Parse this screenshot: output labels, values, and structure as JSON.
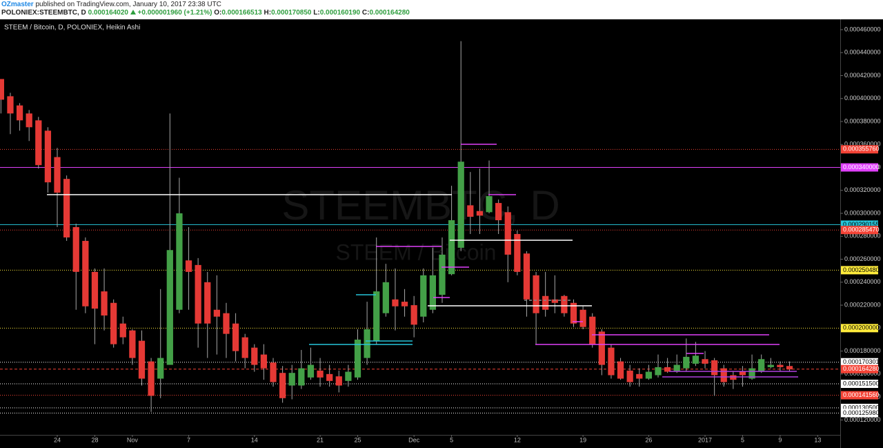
{
  "header": {
    "author": "OZmaster",
    "published": "published on TradingView.com, January 10, 2017 23:38 UTC",
    "symbol": "POLONIEX:STEEMBTC, D",
    "last": "0.000164020",
    "change": "+0.000001960 (+1.21%)",
    "ohlc": [
      {
        "label": "O:",
        "value": "0.000166513"
      },
      {
        "label": "H:",
        "value": "0.000170850"
      },
      {
        "label": "L:",
        "value": "0.000160190"
      },
      {
        "label": "C:",
        "value": "0.000164280"
      }
    ]
  },
  "chart_data": {
    "type": "candlestick",
    "title": "STEEM / Bitcoin, D, POLONIEX, Heikin Ashi",
    "watermark": "STEEMBTC, D",
    "watermark_subtitle": "STEEM / Bitcoin",
    "up_color": "#43a047",
    "down_color": "#e53935",
    "wick_color": "#a8a8a8",
    "open": [
      0.000417,
      0.000402,
      0.000394,
      0.000387,
      0.000381,
      0.000372,
      0.000349,
      0.00033,
      0.000288,
      0.000276,
      0.000249,
      0.000232,
      0.000222,
      0.000204,
      0.000198,
      0.000189,
      0.000171,
      0.000156,
      0.000168,
      0.000216,
      0.000259,
      0.000255,
      0.00024,
      0.000216,
      0.000213,
      0.000204,
      0.000192,
      0.000183,
      0.000177,
      0.00017,
      0.000161,
      0.00015,
      0.00015,
      0.000157,
      0.000163,
      0.00016,
      0.000158,
      0.000154,
      0.000157,
      0.000174,
      0.000189,
      0.000213,
      0.000225,
      0.000223,
      0.00022,
      0.00021,
      0.000216,
      0.000229,
      0.000247,
      0.00027,
      0.000307,
      0.000302,
      0.000301,
      0.000309,
      0.000301,
      0.000282,
      0.000265,
      0.000246,
      0.000228,
      0.000225,
      0.000228,
      0.000222,
      0.000216,
      0.00021,
      0.000197,
      0.000183,
      0.000171,
      0.000163,
      0.00016,
      0.000156,
      0.000159,
      0.000166,
      0.000162,
      0.000165,
      0.000169,
      0.000173,
      0.000172,
      0.000165,
      0.000159,
      0.000162,
      0.000156,
      0.000162,
      0.000166,
      0.000168,
      0.000167
    ],
    "close": [
      0.000399,
      0.000387,
      0.000381,
      0.000375,
      0.000342,
      0.000327,
      0.000318,
      0.000279,
      0.000249,
      0.000219,
      0.000217,
      0.000211,
      0.000186,
      0.000192,
      0.000174,
      0.000156,
      0.000141,
      0.000174,
      0.000268,
      0.0003,
      0.000249,
      0.000204,
      0.000204,
      0.00021,
      0.000195,
      0.00018,
      0.000174,
      0.000168,
      0.000165,
      0.000153,
      0.000139,
      0.000161,
      0.000165,
      0.000168,
      0.000157,
      0.000154,
      0.00015,
      0.000162,
      0.00019,
      0.000199,
      0.000232,
      0.00024,
      0.000219,
      0.000219,
      0.000203,
      0.000246,
      0.000246,
      0.000264,
      0.000294,
      0.000345,
      0.000297,
      0.000298,
      0.000315,
      0.000294,
      0.000264,
      0.000249,
      0.000225,
      0.000213,
      0.000216,
      0.000222,
      0.000213,
      0.000204,
      0.000201,
      0.000186,
      0.000168,
      0.000159,
      0.000156,
      0.000153,
      0.000156,
      0.000162,
      0.000166,
      0.000162,
      0.000168,
      0.000175,
      0.000176,
      0.000169,
      0.000159,
      0.000153,
      0.000155,
      0.000159,
      0.000165,
      0.000173,
      0.000168,
      0.000166,
      0.000164
    ],
    "high": [
      0.000417,
      0.000405,
      0.000396,
      0.00039,
      0.000384,
      0.000375,
      0.000357,
      0.000333,
      0.000291,
      0.000279,
      0.000252,
      0.000252,
      0.000225,
      0.00021,
      0.000199,
      0.000198,
      0.000174,
      0.000234,
      0.000387,
      0.000331,
      0.000288,
      0.000261,
      0.000249,
      0.000246,
      0.000222,
      0.000213,
      0.000195,
      0.000186,
      0.000186,
      0.000174,
      0.000167,
      0.000168,
      0.000181,
      0.000183,
      0.000174,
      0.000168,
      0.000163,
      0.000168,
      0.000199,
      0.000223,
      0.000279,
      0.000256,
      0.000252,
      0.000234,
      0.000228,
      0.000252,
      0.00027,
      0.000279,
      0.000324,
      0.00045,
      0.000336,
      0.000339,
      0.000346,
      0.000312,
      0.000306,
      0.000285,
      0.000267,
      0.000249,
      0.000249,
      0.000246,
      0.000229,
      0.000225,
      0.000219,
      0.000213,
      0.000199,
      0.000186,
      0.000174,
      0.000168,
      0.000165,
      0.000168,
      0.000177,
      0.000174,
      0.000177,
      0.000191,
      0.000188,
      0.00018,
      0.000174,
      0.000168,
      0.000162,
      0.000167,
      0.000177,
      0.000177,
      0.000174,
      0.000171,
      0.000171
    ],
    "low": [
      0.000387,
      0.000369,
      0.000372,
      0.000363,
      0.000339,
      0.000318,
      0.000288,
      0.000276,
      0.000216,
      0.000213,
      0.000186,
      0.000198,
      0.000183,
      0.000186,
      0.000168,
      0.00015,
      0.000127,
      0.000139,
      0.000168,
      0.000213,
      0.000216,
      0.000183,
      0.000174,
      0.000177,
      0.000174,
      0.000171,
      0.000165,
      0.000162,
      0.000155,
      0.000149,
      0.000135,
      0.000138,
      0.000147,
      0.000155,
      0.000149,
      0.000149,
      0.000144,
      0.000149,
      0.000155,
      0.000168,
      0.000186,
      0.00021,
      0.000198,
      0.00021,
      0.000192,
      0.000205,
      0.000213,
      0.000222,
      0.000246,
      0.000267,
      0.000282,
      0.000282,
      0.0003,
      0.000282,
      0.00024,
      0.000246,
      0.00021,
      0.000186,
      0.00021,
      0.000213,
      0.00021,
      0.000201,
      0.000199,
      0.000183,
      0.000159,
      0.000156,
      0.000155,
      0.000149,
      0.000149,
      0.000155,
      0.000157,
      0.000161,
      0.000161,
      0.000162,
      0.000167,
      0.000165,
      0.000141,
      0.000149,
      0.000147,
      0.000149,
      0.000155,
      0.000161,
      0.000165,
      0.000162,
      0.000162
    ],
    "xlim": [
      -0.1,
      89.4
    ],
    "xticks": [
      {
        "value": 6,
        "label": "24"
      },
      {
        "value": 10,
        "label": "28"
      },
      {
        "value": 14,
        "label": "Nov"
      },
      {
        "value": 20,
        "label": "7"
      },
      {
        "value": 27,
        "label": "14"
      },
      {
        "value": 34,
        "label": "21"
      },
      {
        "value": 38,
        "label": "25"
      },
      {
        "value": 44,
        "label": "Dec"
      },
      {
        "value": 48,
        "label": "5"
      },
      {
        "value": 55,
        "label": "12"
      },
      {
        "value": 62,
        "label": "19"
      },
      {
        "value": 69,
        "label": "26"
      },
      {
        "value": 75,
        "label": "2017"
      },
      {
        "value": 79,
        "label": "5"
      },
      {
        "value": 83,
        "label": "9"
      },
      {
        "value": 87,
        "label": "13"
      }
    ],
    "ylim": [
      0.000107,
      0.000469
    ],
    "yticks": [
      {
        "value": 0.00046,
        "label": "0.000460000"
      },
      {
        "value": 0.00044,
        "label": "0.000440000"
      },
      {
        "value": 0.00042,
        "label": "0.000420000"
      },
      {
        "value": 0.0004,
        "label": "0.000400000"
      },
      {
        "value": 0.00038,
        "label": "0.000380000"
      },
      {
        "value": 0.00036,
        "label": "0.000360000"
      },
      {
        "value": 0.00034,
        "label": "0.000340000"
      },
      {
        "value": 0.00032,
        "label": "0.000320000"
      },
      {
        "value": 0.0003,
        "label": "0.000300000"
      },
      {
        "value": 0.00028,
        "label": "0.000280000"
      },
      {
        "value": 0.00026,
        "label": "0.000260000"
      },
      {
        "value": 0.00024,
        "label": "0.000240000"
      },
      {
        "value": 0.00022,
        "label": "0.000220000"
      },
      {
        "value": 0.0002,
        "label": "0.000200000"
      },
      {
        "value": 0.00018,
        "label": "0.000180000"
      },
      {
        "value": 0.00016,
        "label": "0.000160000"
      },
      {
        "value": 0.00014,
        "label": "0.000140000"
      },
      {
        "value": 0.00012,
        "label": "0.000120000"
      }
    ],
    "grid": false,
    "levels": [
      {
        "value": 0.00035576,
        "label": "0.000355760",
        "color": "#f44336",
        "text_color": "#ffffff",
        "style": "dotted"
      },
      {
        "value": 0.00034,
        "label": "0.000340000",
        "color": "#e040fb",
        "text_color": "#ffffff",
        "style": "solid"
      },
      {
        "value": 0.000290155,
        "label": "0.000290155",
        "color": "#26c6da",
        "text_color": "#000000",
        "style": "solid"
      },
      {
        "value": 0.00028547,
        "label": "0.000285470",
        "color": "#f44336",
        "text_color": "#ffffff",
        "style": "dotted"
      },
      {
        "value": 0.00025048,
        "label": "0.000250480",
        "color": "#ffeb3b",
        "text_color": "#000000",
        "style": "dotted"
      },
      {
        "value": 0.0002,
        "label": "0.000200000",
        "color": "#ffeb3b",
        "text_color": "#000000",
        "style": "dotted"
      },
      {
        "value": 0.000170301,
        "label": "0.000170301",
        "color": "#ffffff",
        "text_color": "#000000",
        "style": "dotted"
      },
      {
        "value": 0.00016428,
        "label": "0.000164280",
        "color": "#f44336",
        "text_color": "#ffffff",
        "style": "dashed"
      },
      {
        "value": 0.0001515,
        "label": "0.000151500",
        "color": "#ffffff",
        "text_color": "#000000",
        "style": "dotted"
      },
      {
        "value": 0.00014156,
        "label": "0.000141560",
        "color": "#f44336",
        "text_color": "#ffffff",
        "style": "dotted"
      },
      {
        "value": 0.0001305,
        "label": "0.000130500",
        "color": "#ffffff",
        "text_color": "#000000",
        "style": "dotted"
      },
      {
        "value": 0.00012598,
        "label": "0.000125980",
        "color": "#ffffff",
        "text_color": "#000000",
        "style": "dotted"
      }
    ]
  }
}
